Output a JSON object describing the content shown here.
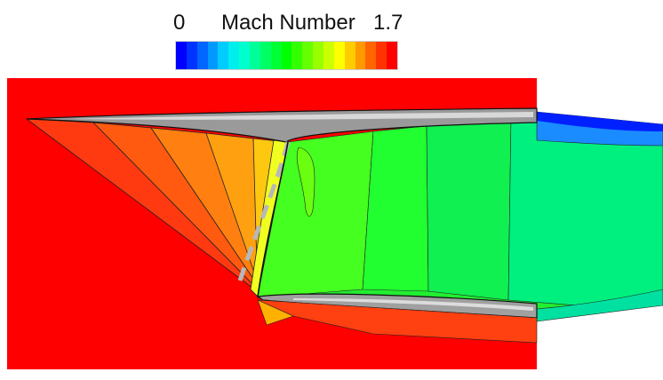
{
  "legend": {
    "min_label": "0",
    "title": "Mach Number",
    "max_label": "1.7",
    "colors": [
      "#0000ff",
      "#0033ff",
      "#0066ff",
      "#0099ff",
      "#00ccff",
      "#00eeee",
      "#00ffcc",
      "#00ff99",
      "#00ff66",
      "#00ff33",
      "#00ff00",
      "#33ff00",
      "#66ff00",
      "#99ff00",
      "#ccff00",
      "#ffff00",
      "#ffcc00",
      "#ff9900",
      "#ff6600",
      "#ff3300",
      "#ff0000"
    ]
  },
  "field": {
    "freestream_color": "#ff0000",
    "cowl_color": "#b0b0b0",
    "shock_marker_color": "#b8b8b8"
  }
}
